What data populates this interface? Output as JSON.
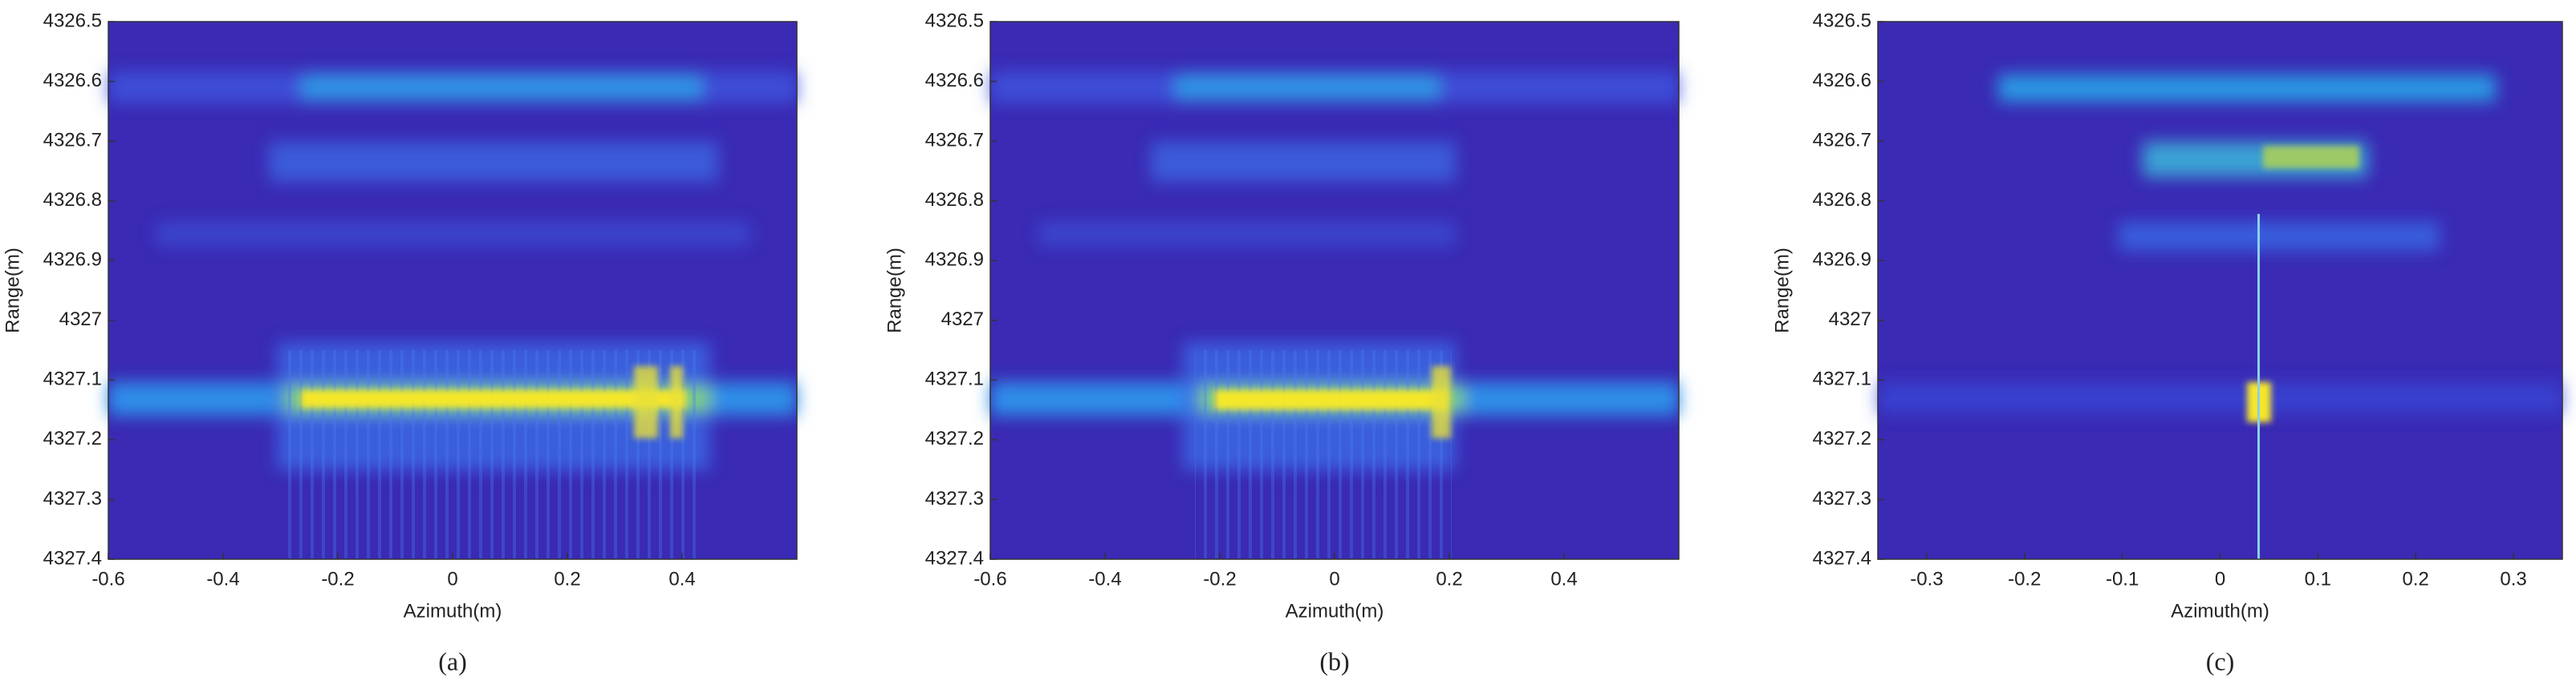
{
  "chart_data": [
    {
      "type": "image",
      "caption": "(a)",
      "xlabel": "Azimuth(m)",
      "ylabel": "Range(m)",
      "xlim": [
        -0.6,
        0.6
      ],
      "xticks": [
        -0.6,
        -0.4,
        -0.2,
        0,
        0.2,
        0.4
      ],
      "ylim": [
        4326.5,
        4327.4
      ],
      "yticks": [
        4326.5,
        4326.6,
        4326.7,
        4326.8,
        4326.9,
        4327,
        4327.1,
        4327.2,
        4327.3,
        4327.4
      ],
      "y_reversed": true
    },
    {
      "type": "image",
      "caption": "(b)",
      "xlabel": "Azimuth(m)",
      "ylabel": "Range(m)",
      "xlim": [
        -0.6,
        0.6
      ],
      "xticks": [
        -0.6,
        -0.4,
        -0.2,
        0,
        0.2,
        0.4
      ],
      "ylim": [
        4326.5,
        4327.4
      ],
      "yticks": [
        4326.5,
        4326.6,
        4326.7,
        4326.8,
        4326.9,
        4327,
        4327.1,
        4327.2,
        4327.3,
        4327.4
      ],
      "y_reversed": true
    },
    {
      "type": "image",
      "caption": "(c)",
      "xlabel": "Azimuth(m)",
      "ylabel": "Range(m)",
      "xlim": [
        -0.35,
        0.35
      ],
      "xticks": [
        -0.3,
        -0.2,
        -0.1,
        0,
        0.1,
        0.2,
        0.3
      ],
      "ylim": [
        4326.5,
        4327.4
      ],
      "yticks": [
        4326.5,
        4326.6,
        4326.7,
        4326.8,
        4326.9,
        4327,
        4327.1,
        4327.2,
        4327.3,
        4327.4
      ],
      "y_reversed": true
    }
  ]
}
